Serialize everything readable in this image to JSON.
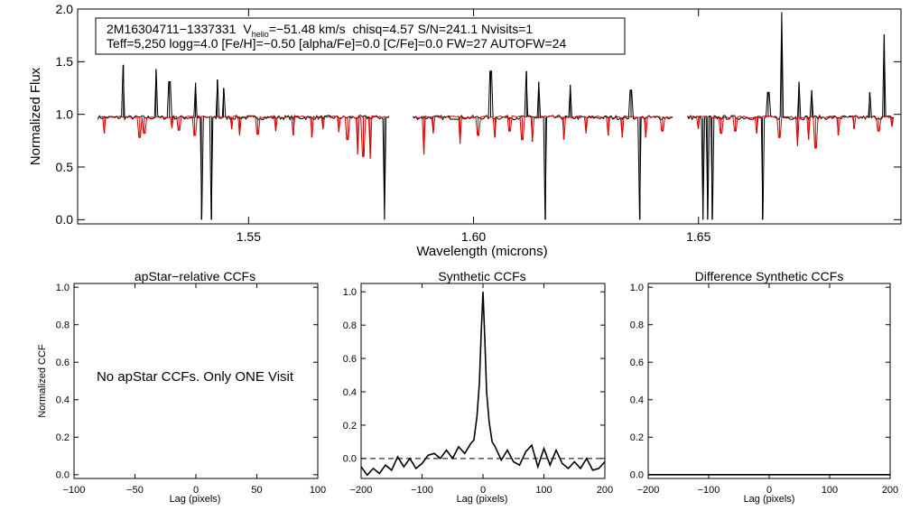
{
  "chart_data": [
    {
      "id": "spectrum",
      "type": "line",
      "xlabel": "Wavelength (microns)",
      "ylabel": "Normalized Flux",
      "xlim": [
        1.512,
        1.695
      ],
      "ylim": [
        -0.04,
        2.0
      ],
      "xticks": [
        "1.55",
        "1.60",
        "1.65"
      ],
      "xtick_values": [
        1.55,
        1.6,
        1.65
      ],
      "yticks": [
        "0.0",
        "0.5",
        "1.0",
        "1.5",
        "2.0"
      ],
      "ytick_values": [
        0.0,
        0.5,
        1.0,
        1.5,
        2.0
      ],
      "annotation": {
        "star": "2M16304711−1337331",
        "v_letter": "V",
        "v_sub": "helio",
        "v_value": "=−51.48 km/s",
        "stats": "chisq=4.57  S/N=241.1  Nvisits=1",
        "line2": "Teff=5,250 logg=4.0 [Fe/H]=−0.50 [alpha/Fe]=0.0 [C/Fe]=0.0 FW=27 AUTOFW=24"
      },
      "chips": [
        [
          1.5165,
          1.5815
        ],
        [
          1.5865,
          1.6445
        ],
        [
          1.6475,
          1.6935
        ]
      ],
      "series": [
        {
          "name": "observed",
          "color": "#000000",
          "continuum": 0.97,
          "emission": [
            [
              1.5222,
              1.47
            ],
            [
              1.5232,
              0.97
            ],
            [
              1.5294,
              1.43
            ],
            [
              1.5324,
              1.31
            ],
            [
              1.5382,
              1.3
            ],
            [
              1.543,
              1.33
            ],
            [
              1.5444,
              1.25
            ],
            [
              1.6038,
              1.41
            ],
            [
              1.6118,
              1.41
            ],
            [
              1.6145,
              1.31
            ],
            [
              1.6215,
              1.28
            ],
            [
              1.635,
              1.23
            ],
            [
              1.6655,
              1.21
            ],
            [
              1.6685,
              1.97
            ],
            [
              1.6723,
              1.31
            ],
            [
              1.6752,
              1.23
            ],
            [
              1.688,
              1.21
            ],
            [
              1.6913,
              1.76
            ]
          ],
          "absorption": [
            [
              1.5395,
              0.0
            ],
            [
              1.5418,
              0.0
            ],
            [
              1.5802,
              0.0
            ],
            [
              1.616,
              0.0
            ],
            [
              1.637,
              0.0
            ],
            [
              1.651,
              0.0
            ],
            [
              1.652,
              0.0
            ],
            [
              1.653,
              0.0
            ],
            [
              1.6642,
              0.0
            ]
          ]
        },
        {
          "name": "model",
          "color": "#d40000",
          "continuum": 0.975,
          "absorption": [
            [
              1.518,
              0.82
            ],
            [
              1.5258,
              0.78
            ],
            [
              1.5268,
              0.82
            ],
            [
              1.533,
              0.87
            ],
            [
              1.5345,
              0.85
            ],
            [
              1.538,
              0.8
            ],
            [
              1.5462,
              0.86
            ],
            [
              1.548,
              0.8
            ],
            [
              1.552,
              0.81
            ],
            [
              1.556,
              0.84
            ],
            [
              1.56,
              0.8
            ],
            [
              1.564,
              0.78
            ],
            [
              1.5665,
              0.86
            ],
            [
              1.57,
              0.83
            ],
            [
              1.572,
              0.76
            ],
            [
              1.5742,
              0.62
            ],
            [
              1.5755,
              0.6
            ],
            [
              1.577,
              0.58
            ],
            [
              1.589,
              0.62
            ],
            [
              1.591,
              0.82
            ],
            [
              1.597,
              0.72
            ],
            [
              1.601,
              0.8
            ],
            [
              1.6048,
              0.78
            ],
            [
              1.608,
              0.84
            ],
            [
              1.6108,
              0.76
            ],
            [
              1.613,
              0.74
            ],
            [
              1.62,
              0.76
            ],
            [
              1.625,
              0.82
            ],
            [
              1.63,
              0.8
            ],
            [
              1.633,
              0.78
            ],
            [
              1.6382,
              0.78
            ],
            [
              1.642,
              0.84
            ],
            [
              1.65,
              0.86
            ],
            [
              1.655,
              0.82
            ],
            [
              1.6582,
              0.84
            ],
            [
              1.663,
              0.82
            ],
            [
              1.668,
              0.78
            ],
            [
              1.672,
              0.7
            ],
            [
              1.6745,
              0.76
            ],
            [
              1.676,
              0.68
            ],
            [
              1.681,
              0.8
            ],
            [
              1.6845,
              0.86
            ],
            [
              1.69,
              0.84
            ],
            [
              1.693,
              0.88
            ]
          ]
        }
      ]
    },
    {
      "id": "apstar",
      "type": "line",
      "title": "apStar−relative CCFs",
      "xlabel": "Lag (pixels)",
      "ylabel": "Normalized CCF",
      "xlim": [
        -100,
        100
      ],
      "ylim": [
        -0.02,
        1.02
      ],
      "xticks": [
        "−100",
        "−50",
        "0",
        "50",
        "100"
      ],
      "xtick_values": [
        -100,
        -50,
        0,
        50,
        100
      ],
      "yticks": [
        "0.0",
        "0.2",
        "0.4",
        "0.6",
        "0.8",
        "1.0"
      ],
      "ytick_values": [
        0.0,
        0.2,
        0.4,
        0.6,
        0.8,
        1.0
      ],
      "message": "No apStar CCFs.  Only ONE Visit",
      "series": []
    },
    {
      "id": "synthetic",
      "type": "line",
      "title": "Synthetic CCFs",
      "xlabel": "Lag (pixels)",
      "xlim": [
        -200,
        200
      ],
      "ylim": [
        -0.12,
        1.05
      ],
      "xticks": [
        "−200",
        "−100",
        "0",
        "100",
        "200"
      ],
      "xtick_values": [
        -200,
        -100,
        0,
        100,
        200
      ],
      "yticks": [
        "0.0",
        "0.2",
        "0.4",
        "0.6",
        "0.8",
        "1.0"
      ],
      "ytick_values": [
        0.0,
        0.2,
        0.4,
        0.6,
        0.8,
        1.0
      ],
      "reference_line": 0.0,
      "series": [
        {
          "name": "synthetic CCF",
          "color": "#000000",
          "x": [
            -200,
            -190,
            -180,
            -170,
            -160,
            -150,
            -140,
            -130,
            -120,
            -110,
            -100,
            -90,
            -80,
            -70,
            -60,
            -50,
            -40,
            -30,
            -20,
            -15,
            -10,
            -6,
            -3,
            0,
            3,
            6,
            10,
            15,
            20,
            30,
            40,
            50,
            60,
            70,
            80,
            90,
            100,
            110,
            120,
            130,
            140,
            150,
            160,
            170,
            180,
            190,
            200
          ],
          "y": [
            -0.05,
            -0.1,
            -0.06,
            -0.09,
            -0.04,
            -0.07,
            0.01,
            -0.05,
            0.0,
            -0.06,
            -0.03,
            0.02,
            0.03,
            0.0,
            0.05,
            0.0,
            0.07,
            0.03,
            0.09,
            0.11,
            0.25,
            0.45,
            0.75,
            1.0,
            0.72,
            0.4,
            0.22,
            0.1,
            0.07,
            -0.01,
            0.05,
            -0.02,
            -0.04,
            0.04,
            0.08,
            -0.05,
            0.06,
            -0.04,
            0.05,
            -0.03,
            -0.06,
            -0.02,
            -0.06,
            0.0,
            -0.07,
            -0.06,
            -0.02
          ]
        }
      ]
    },
    {
      "id": "difference",
      "type": "line",
      "title": "Difference Synthetic CCFs",
      "xlabel": "Lag (pixels)",
      "xlim": [
        -200,
        200
      ],
      "ylim": [
        -0.02,
        1.02
      ],
      "xticks": [
        "−200",
        "−100",
        "0",
        "100",
        "200"
      ],
      "xtick_values": [
        -200,
        -100,
        0,
        100,
        200
      ],
      "yticks": [
        "0.0",
        "0.2",
        "0.4",
        "0.6",
        "0.8",
        "1.0"
      ],
      "ytick_values": [
        0.0,
        0.2,
        0.4,
        0.6,
        0.8,
        1.0
      ],
      "series": [
        {
          "name": "difference CCF",
          "color": "#000000",
          "x": [
            -200,
            200
          ],
          "y": [
            0.0,
            0.0
          ]
        }
      ]
    }
  ]
}
